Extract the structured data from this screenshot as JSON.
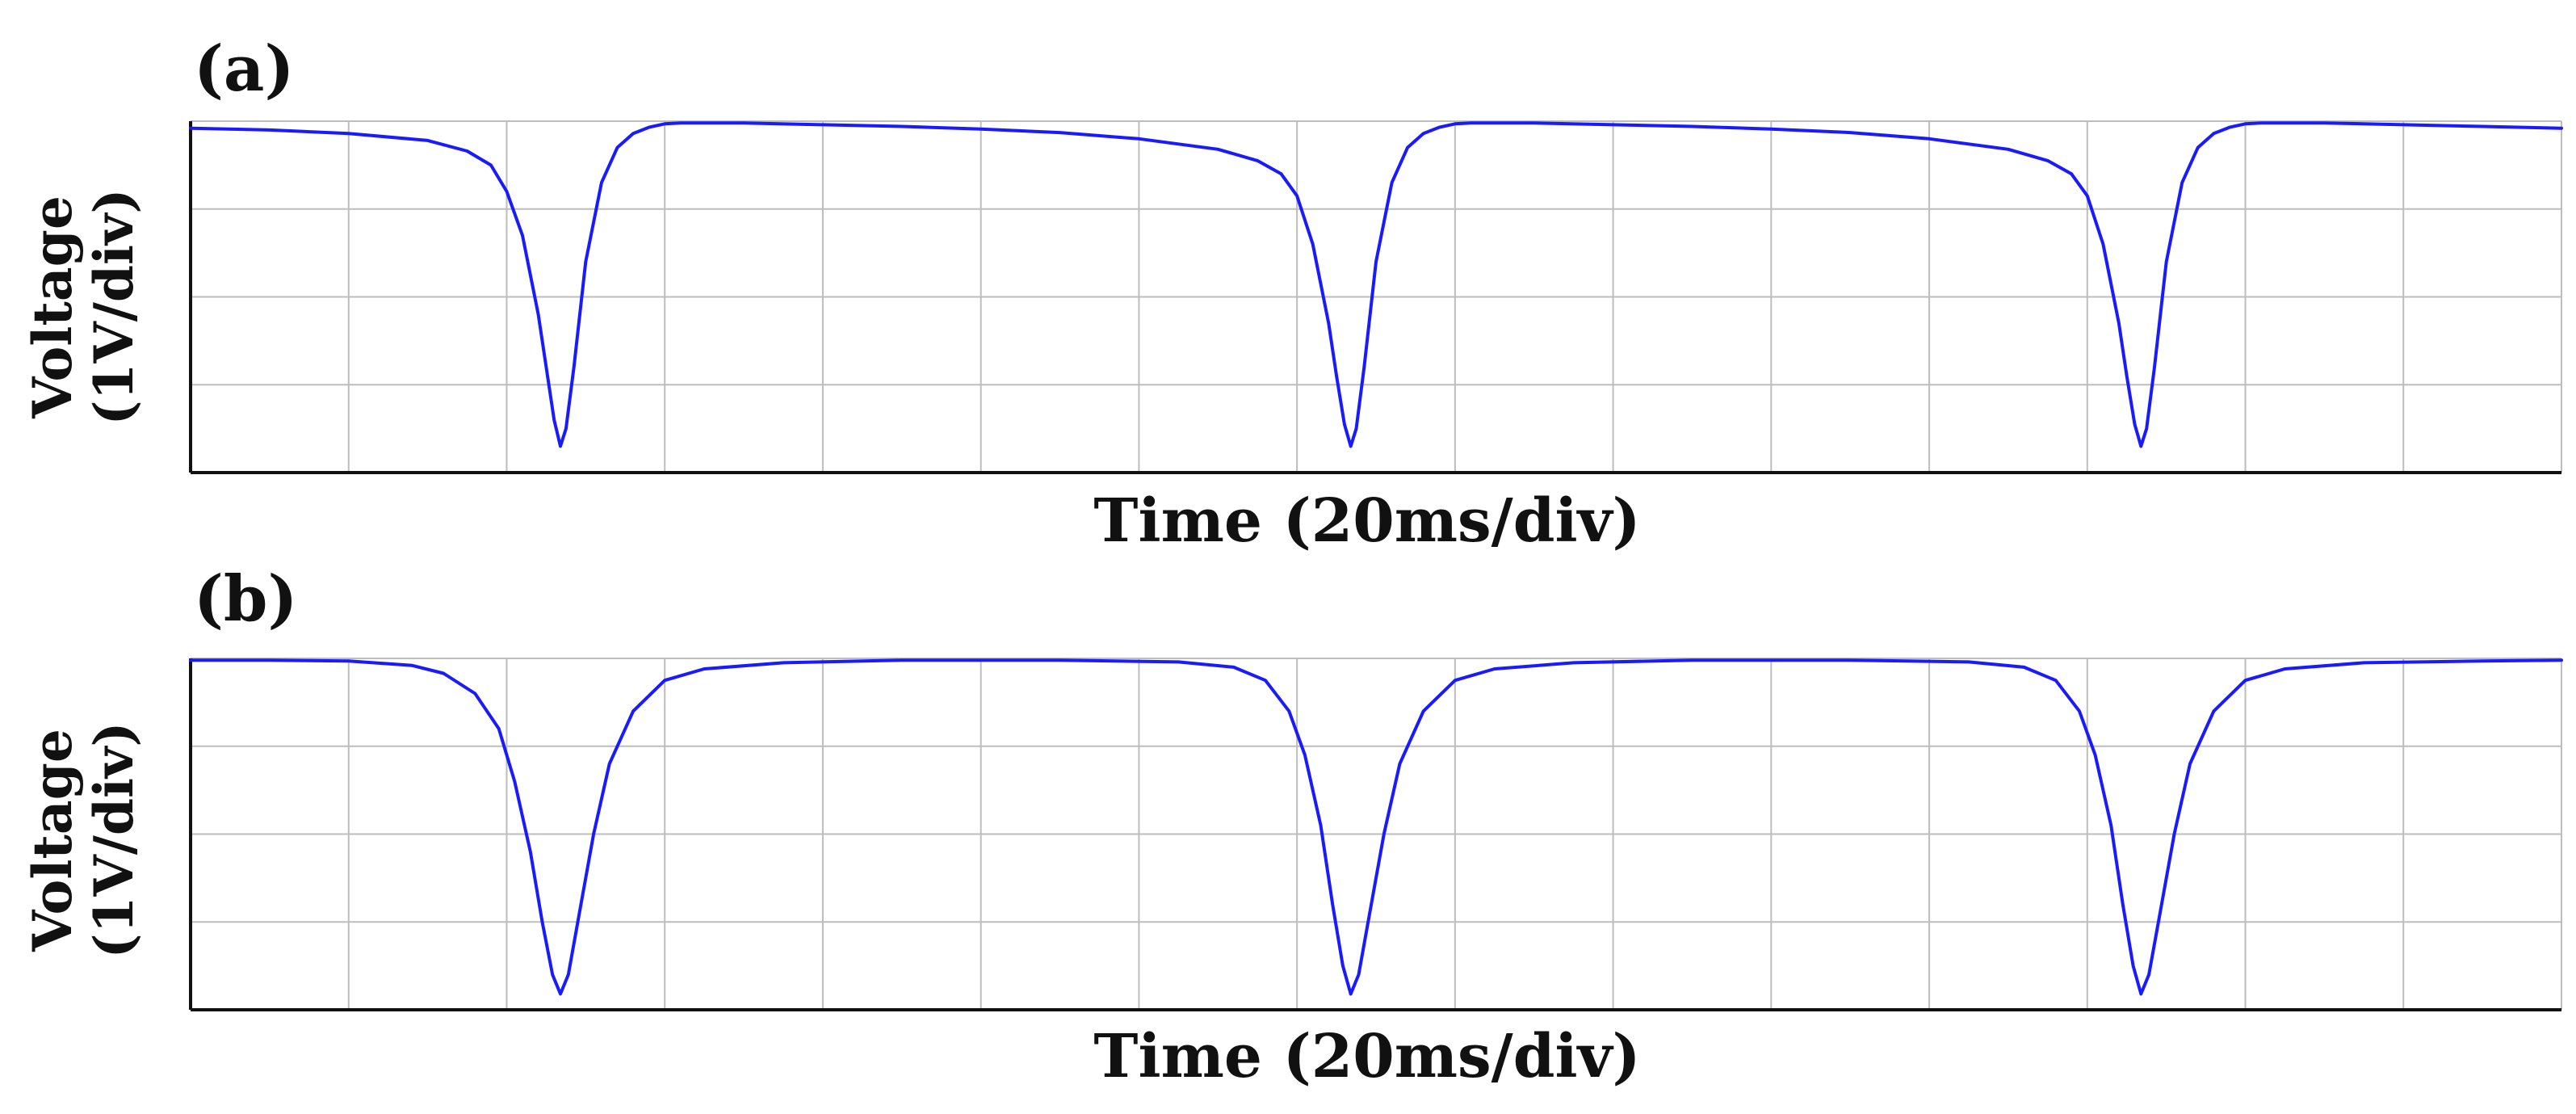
{
  "chart_data": [
    {
      "type": "line",
      "panel_label": "(a)",
      "xlabel": "Time (20ms/div)",
      "ylabel_line1": "Voltage",
      "ylabel_line2": "(1V/div)",
      "x_unit": "ms",
      "y_unit": "V",
      "xlim": [
        0,
        300
      ],
      "ylim": [
        0,
        4
      ],
      "x_divisions": 15,
      "y_divisions": 4,
      "grid": true,
      "trace_color": "#1a1aff",
      "series": [
        {
          "x": [
            0,
            10,
            20,
            30,
            35,
            38,
            40,
            42,
            44,
            45,
            46,
            46.8,
            47.5,
            48.5,
            50,
            52,
            54,
            56,
            58,
            60,
            62,
            65,
            70,
            80,
            90,
            100,
            110,
            120,
            130,
            135,
            138,
            140,
            142,
            144,
            145,
            146,
            146.8,
            147.5,
            148.5,
            150,
            152,
            154,
            156,
            158,
            160,
            162,
            165,
            170,
            180,
            190,
            200,
            210,
            220,
            230,
            235,
            238,
            240,
            242,
            244,
            245,
            246,
            246.8,
            247.5,
            248.5,
            250,
            252,
            254,
            256,
            258,
            260,
            262,
            265,
            270,
            280,
            290,
            300
          ],
          "y": [
            3.92,
            3.9,
            3.86,
            3.78,
            3.66,
            3.5,
            3.2,
            2.7,
            1.8,
            1.2,
            0.6,
            0.3,
            0.5,
            1.2,
            2.4,
            3.3,
            3.7,
            3.86,
            3.93,
            3.97,
            3.98,
            3.98,
            3.98,
            3.96,
            3.94,
            3.91,
            3.87,
            3.8,
            3.68,
            3.55,
            3.4,
            3.15,
            2.6,
            1.7,
            1.1,
            0.55,
            0.3,
            0.5,
            1.2,
            2.4,
            3.3,
            3.7,
            3.86,
            3.93,
            3.97,
            3.98,
            3.98,
            3.98,
            3.96,
            3.94,
            3.91,
            3.87,
            3.8,
            3.68,
            3.55,
            3.4,
            3.15,
            2.6,
            1.7,
            1.1,
            0.55,
            0.3,
            0.5,
            1.2,
            2.4,
            3.3,
            3.7,
            3.86,
            3.93,
            3.97,
            3.98,
            3.98,
            3.98,
            3.96,
            3.94,
            3.92
          ]
        }
      ]
    },
    {
      "type": "line",
      "panel_label": "(b)",
      "xlabel": "Time (20ms/div)",
      "ylabel_line1": "Voltage",
      "ylabel_line2": "(1V/div)",
      "x_unit": "ms",
      "y_unit": "V",
      "xlim": [
        0,
        300
      ],
      "ylim": [
        0,
        4
      ],
      "x_divisions": 15,
      "y_divisions": 4,
      "grid": true,
      "trace_color": "#1a1aff",
      "series": [
        {
          "x": [
            0,
            10,
            20,
            28,
            32,
            36,
            39,
            41,
            43,
            44.5,
            45.8,
            46.8,
            47.8,
            49,
            51,
            53,
            56,
            60,
            65,
            75,
            90,
            110,
            125,
            132,
            136,
            139,
            141,
            143,
            144.5,
            145.8,
            146.8,
            147.8,
            149,
            151,
            153,
            156,
            160,
            165,
            175,
            190,
            210,
            225,
            232,
            236,
            239,
            241,
            243,
            244.5,
            245.8,
            246.8,
            247.8,
            249,
            251,
            253,
            256,
            260,
            265,
            275,
            290,
            300
          ],
          "y": [
            3.98,
            3.98,
            3.97,
            3.92,
            3.83,
            3.6,
            3.2,
            2.6,
            1.8,
            1.0,
            0.4,
            0.18,
            0.4,
            1.0,
            2.0,
            2.8,
            3.4,
            3.75,
            3.88,
            3.95,
            3.98,
            3.98,
            3.96,
            3.9,
            3.75,
            3.4,
            2.9,
            2.1,
            1.2,
            0.5,
            0.18,
            0.4,
            1.0,
            2.0,
            2.8,
            3.4,
            3.75,
            3.88,
            3.95,
            3.98,
            3.98,
            3.96,
            3.9,
            3.75,
            3.4,
            2.9,
            2.1,
            1.2,
            0.5,
            0.18,
            0.4,
            1.0,
            2.0,
            2.8,
            3.4,
            3.75,
            3.88,
            3.95,
            3.97,
            3.98
          ]
        }
      ]
    }
  ]
}
